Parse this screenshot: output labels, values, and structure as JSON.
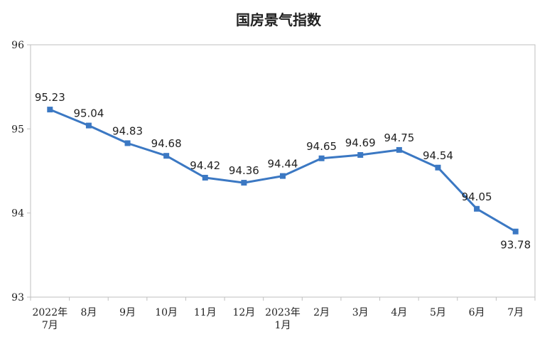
{
  "chart_data": {
    "type": "line",
    "title": "国房景气指数",
    "xlabel": "",
    "ylabel": "",
    "categories": [
      [
        "2022年",
        "7月"
      ],
      [
        "8月"
      ],
      [
        "9月"
      ],
      [
        "10月"
      ],
      [
        "11月"
      ],
      [
        "12月"
      ],
      [
        "2023年",
        "1月"
      ],
      [
        "2月"
      ],
      [
        "3月"
      ],
      [
        "4月"
      ],
      [
        "5月"
      ],
      [
        "6月"
      ],
      [
        "7月"
      ]
    ],
    "series": [
      {
        "values": [
          95.23,
          95.04,
          94.83,
          94.68,
          94.42,
          94.36,
          94.44,
          94.65,
          94.69,
          94.75,
          94.54,
          94.05,
          93.78
        ]
      }
    ],
    "value_labels": [
      "95.23",
      "95.04",
      "94.83",
      "94.68",
      "94.42",
      "94.36",
      "94.44",
      "94.65",
      "94.69",
      "94.75",
      "94.54",
      "94.05",
      "93.78"
    ],
    "ylim": [
      93,
      96
    ],
    "yticks": [
      "93",
      "94",
      "95",
      "96"
    ],
    "grid": false,
    "line_color": "#3b78c3",
    "frame_color": "#bfbfbf"
  }
}
